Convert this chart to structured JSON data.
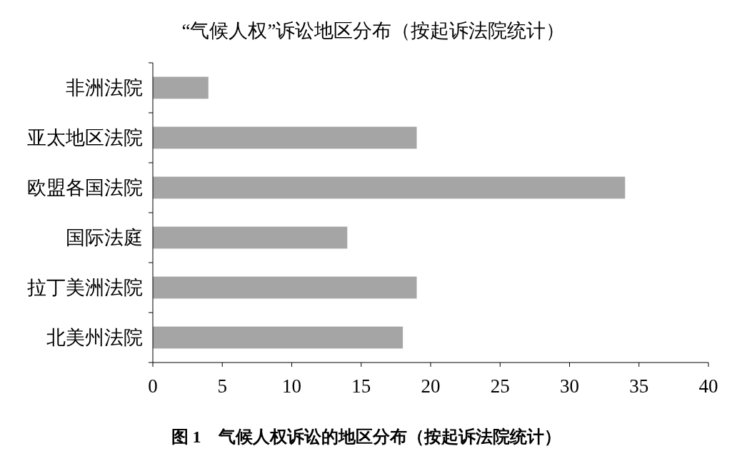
{
  "chart_data": {
    "type": "bar",
    "orientation": "horizontal",
    "title": "“气候人权”诉讼地区分布（按起诉法院统计）",
    "categories": [
      "非洲法院",
      "亚太地区法院",
      "欧盟各国法院",
      "国际法庭",
      "拉丁美洲法院",
      "北美州法院"
    ],
    "values": [
      4,
      19,
      34,
      14,
      19,
      18
    ],
    "color": "#a5a5a5",
    "xlim": [
      0,
      40
    ],
    "xticks": [
      0,
      5,
      10,
      15,
      20,
      25,
      30,
      35,
      40
    ],
    "grid": false,
    "legend": false,
    "annotations": [
      "**图 1**　**气候人权诉讼的地区分布（按起诉法院统计）**"
    ]
  }
}
